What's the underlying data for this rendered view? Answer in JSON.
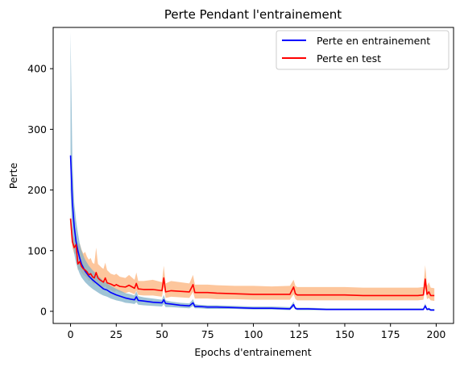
{
  "chart_data": {
    "type": "line",
    "title": "Perte Pendant l'entrainement",
    "xlabel": "Epochs d'entrainement",
    "ylabel": "Perte",
    "xlim": [
      -9.5,
      209.5
    ],
    "ylim": [
      -20,
      468
    ],
    "xticks": [
      "0",
      "25",
      "50",
      "75",
      "100",
      "125",
      "150",
      "175",
      "200"
    ],
    "yticks": [
      "0",
      "100",
      "200",
      "300",
      "400"
    ],
    "grid": false,
    "legend_position": "top-right",
    "series": [
      {
        "name": "Perte en entrainement",
        "color": "#0000ff",
        "band_color": "#7fb0c8",
        "x": [
          0,
          1,
          2,
          3,
          4,
          5,
          6,
          7,
          8,
          9,
          10,
          12,
          14,
          16,
          18,
          20,
          22,
          25,
          28,
          30,
          33,
          35,
          36,
          37,
          40,
          45,
          50,
          51,
          52,
          55,
          60,
          65,
          67,
          68,
          70,
          75,
          80,
          90,
          100,
          110,
          120,
          122,
          123,
          124,
          125,
          130,
          140,
          150,
          160,
          170,
          180,
          190,
          193,
          194,
          195,
          196,
          197,
          199
        ],
        "y": [
          257,
          180,
          140,
          115,
          100,
          88,
          78,
          72,
          66,
          62,
          58,
          52,
          47,
          42,
          37,
          35,
          31,
          27,
          24,
          22,
          20,
          19,
          24,
          18,
          17,
          15,
          14,
          19,
          13,
          12,
          10,
          9,
          14,
          8,
          8,
          7,
          7,
          6,
          5,
          5,
          4,
          11,
          5,
          4,
          4,
          4,
          3,
          3,
          3,
          3,
          3,
          3,
          3,
          9,
          3,
          4,
          2,
          2
        ],
        "lower": [
          200,
          120,
          95,
          80,
          70,
          62,
          56,
          52,
          48,
          45,
          42,
          37,
          33,
          29,
          26,
          24,
          21,
          18,
          16,
          14,
          13,
          12,
          15,
          11,
          10,
          9,
          8,
          12,
          7,
          7,
          6,
          5,
          9,
          5,
          5,
          4,
          4,
          4,
          3,
          3,
          2,
          7,
          3,
          2,
          2,
          2,
          2,
          2,
          2,
          2,
          2,
          2,
          2,
          6,
          2,
          2,
          1,
          1
        ],
        "upper": [
          460,
          250,
          180,
          150,
          130,
          112,
          100,
          92,
          85,
          80,
          75,
          68,
          62,
          56,
          50,
          46,
          42,
          37,
          33,
          30,
          28,
          26,
          33,
          25,
          23,
          21,
          19,
          27,
          18,
          16,
          14,
          13,
          20,
          12,
          11,
          10,
          10,
          9,
          8,
          8,
          7,
          16,
          7,
          6,
          6,
          6,
          5,
          5,
          5,
          5,
          5,
          5,
          5,
          13,
          5,
          6,
          4,
          4
        ]
      },
      {
        "name": "Perte en test",
        "color": "#ff0000",
        "band_color": "#fdc397",
        "x": [
          0,
          1,
          2,
          3,
          4,
          5,
          6,
          7,
          8,
          9,
          10,
          11,
          12,
          13,
          14,
          15,
          16,
          17,
          18,
          19,
          20,
          22,
          24,
          25,
          27,
          30,
          32,
          35,
          36,
          37,
          40,
          45,
          50,
          51,
          52,
          55,
          60,
          65,
          67,
          68,
          70,
          75,
          80,
          90,
          100,
          110,
          120,
          122,
          123,
          124,
          125,
          130,
          140,
          150,
          160,
          170,
          180,
          190,
          193,
          194,
          195,
          196,
          197,
          199
        ],
        "y": [
          153,
          115,
          105,
          110,
          78,
          82,
          74,
          70,
          68,
          65,
          60,
          62,
          57,
          55,
          64,
          55,
          52,
          50,
          48,
          55,
          47,
          45,
          42,
          44,
          41,
          40,
          43,
          38,
          46,
          37,
          36,
          36,
          34,
          55,
          32,
          34,
          33,
          32,
          44,
          31,
          31,
          31,
          30,
          29,
          28,
          28,
          28,
          40,
          29,
          27,
          27,
          27,
          27,
          27,
          26,
          26,
          26,
          26,
          27,
          53,
          28,
          32,
          26,
          26
        ],
        "lower": [
          140,
          105,
          95,
          95,
          68,
          70,
          64,
          60,
          58,
          55,
          50,
          52,
          47,
          45,
          50,
          45,
          42,
          40,
          38,
          42,
          37,
          35,
          32,
          34,
          31,
          30,
          32,
          28,
          34,
          27,
          26,
          26,
          24,
          40,
          22,
          24,
          23,
          22,
          32,
          21,
          21,
          21,
          20,
          20,
          19,
          19,
          19,
          28,
          20,
          18,
          18,
          18,
          18,
          18,
          18,
          18,
          18,
          18,
          19,
          38,
          20,
          22,
          18,
          17
        ],
        "upper": [
          160,
          128,
          120,
          125,
          110,
          112,
          102,
          95,
          98,
          90,
          85,
          88,
          80,
          78,
          105,
          78,
          75,
          72,
          70,
          80,
          68,
          62,
          60,
          62,
          57,
          55,
          60,
          52,
          64,
          50,
          50,
          52,
          48,
          75,
          46,
          50,
          48,
          46,
          60,
          44,
          44,
          44,
          43,
          42,
          42,
          41,
          42,
          52,
          42,
          40,
          40,
          40,
          40,
          40,
          39,
          39,
          39,
          39,
          40,
          76,
          42,
          48,
          39,
          38
        ]
      }
    ]
  }
}
